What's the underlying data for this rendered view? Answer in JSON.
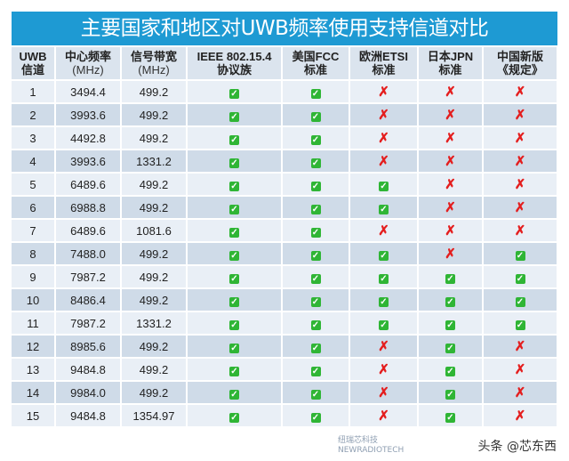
{
  "title": "主要国家和地区对UWB频率使用支持信道对比",
  "headers": [
    {
      "l1": "UWB",
      "l2": "信道"
    },
    {
      "l1": "中心频率",
      "l2": "(MHz)"
    },
    {
      "l1": "信号带宽",
      "l2": "(MHz)"
    },
    {
      "l1": "IEEE 802.15.4",
      "l2": "协议族"
    },
    {
      "l1": "美国FCC",
      "l2": "标准"
    },
    {
      "l1": "欧洲ETSI",
      "l2": "标准"
    },
    {
      "l1": "日本JPN",
      "l2": "标准"
    },
    {
      "l1": "中国新版",
      "l2": "《规定》"
    }
  ],
  "rows": [
    {
      "ch": "1",
      "freq": "3494.4",
      "bw": "499.2",
      "s": [
        1,
        1,
        0,
        0,
        0
      ]
    },
    {
      "ch": "2",
      "freq": "3993.6",
      "bw": "499.2",
      "s": [
        1,
        1,
        0,
        0,
        0
      ]
    },
    {
      "ch": "3",
      "freq": "4492.8",
      "bw": "499.2",
      "s": [
        1,
        1,
        0,
        0,
        0
      ]
    },
    {
      "ch": "4",
      "freq": "3993.6",
      "bw": "1331.2",
      "s": [
        1,
        1,
        0,
        0,
        0
      ]
    },
    {
      "ch": "5",
      "freq": "6489.6",
      "bw": "499.2",
      "s": [
        1,
        1,
        1,
        0,
        0
      ]
    },
    {
      "ch": "6",
      "freq": "6988.8",
      "bw": "499.2",
      "s": [
        1,
        1,
        1,
        0,
        0
      ]
    },
    {
      "ch": "7",
      "freq": "6489.6",
      "bw": "1081.6",
      "s": [
        1,
        1,
        0,
        0,
        0
      ]
    },
    {
      "ch": "8",
      "freq": "7488.0",
      "bw": "499.2",
      "s": [
        1,
        1,
        1,
        0,
        1
      ]
    },
    {
      "ch": "9",
      "freq": "7987.2",
      "bw": "499.2",
      "s": [
        1,
        1,
        1,
        1,
        1
      ]
    },
    {
      "ch": "10",
      "freq": "8486.4",
      "bw": "499.2",
      "s": [
        1,
        1,
        1,
        1,
        1
      ]
    },
    {
      "ch": "11",
      "freq": "7987.2",
      "bw": "1331.2",
      "s": [
        1,
        1,
        1,
        1,
        1
      ]
    },
    {
      "ch": "12",
      "freq": "8985.6",
      "bw": "499.2",
      "s": [
        1,
        1,
        0,
        1,
        0
      ]
    },
    {
      "ch": "13",
      "freq": "9484.8",
      "bw": "499.2",
      "s": [
        1,
        1,
        0,
        1,
        0
      ]
    },
    {
      "ch": "14",
      "freq": "9984.0",
      "bw": "499.2",
      "s": [
        1,
        1,
        0,
        1,
        0
      ]
    },
    {
      "ch": "15",
      "freq": "9484.8",
      "bw": "1354.97",
      "s": [
        1,
        1,
        0,
        1,
        0
      ]
    }
  ],
  "symbols": {
    "yes": "✓",
    "no": "✗"
  },
  "watermark": "头条 @芯东西",
  "logo": {
    "cn": "纽瑞芯科技",
    "en": "NEWRADIOTECH"
  }
}
